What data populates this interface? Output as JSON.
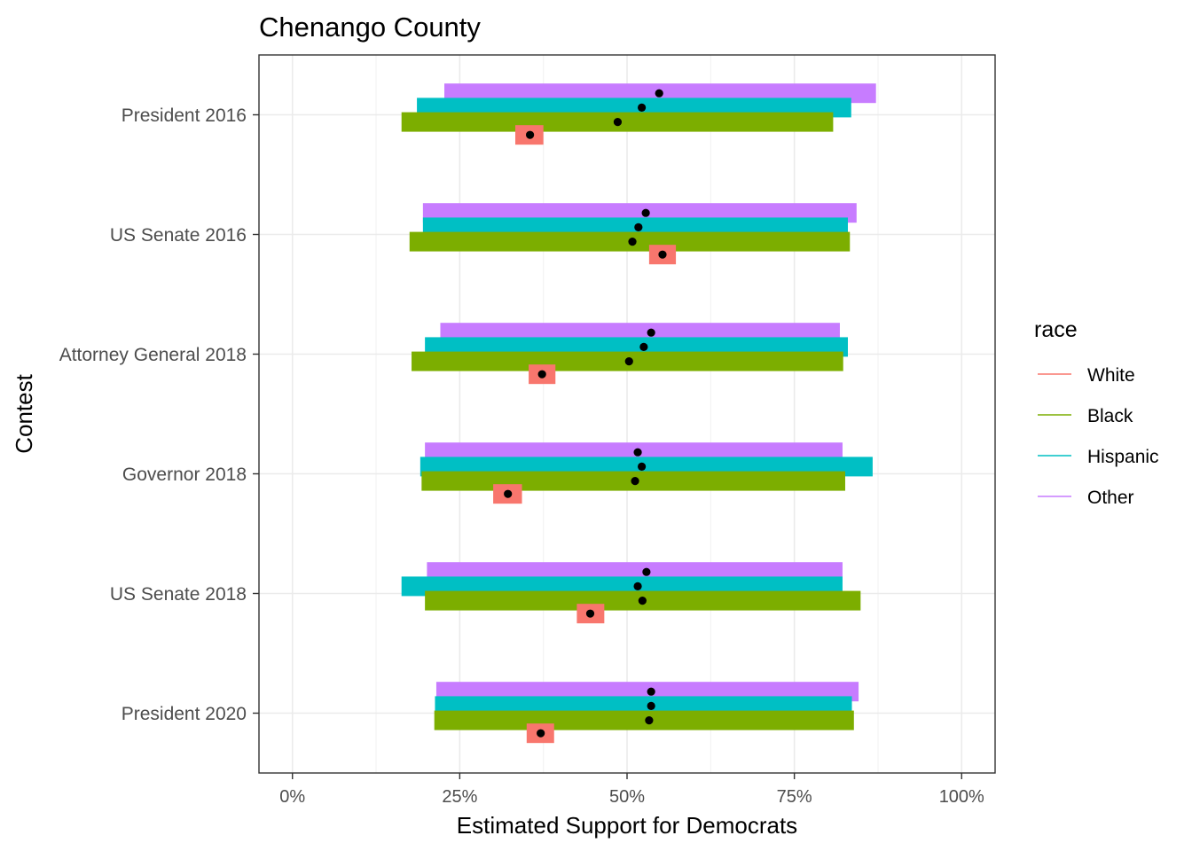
{
  "chart_data": {
    "type": "bar",
    "title": "Chenango County",
    "xlabel": "Estimated Support for Democrats",
    "ylabel": "Contest",
    "xlim": [
      -0.05,
      1.05
    ],
    "x_ticks": [
      0,
      0.25,
      0.5,
      0.75,
      1.0
    ],
    "x_tick_labels": [
      "0%",
      "25%",
      "50%",
      "75%",
      "100%"
    ],
    "grid": true,
    "legend": {
      "title": "race",
      "position": "right"
    },
    "categories": [
      "President 2016",
      "US Senate 2016",
      "Attorney General 2018",
      "Governor 2018",
      "US Senate 2018",
      "President 2020"
    ],
    "series": [
      {
        "name": "White",
        "color": "#F8766D",
        "low": [
          0.333,
          0.533,
          0.353,
          0.3,
          0.425,
          0.35
        ],
        "high": [
          0.375,
          0.573,
          0.393,
          0.343,
          0.466,
          0.391
        ],
        "point": [
          0.355,
          0.553,
          0.373,
          0.322,
          0.445,
          0.371
        ]
      },
      {
        "name": "Black",
        "color": "#7CAE00",
        "low": [
          0.163,
          0.175,
          0.178,
          0.193,
          0.198,
          0.212
        ],
        "high": [
          0.808,
          0.833,
          0.823,
          0.826,
          0.849,
          0.839
        ],
        "point": [
          0.486,
          0.508,
          0.503,
          0.512,
          0.523,
          0.533
        ]
      },
      {
        "name": "Hispanic",
        "color": "#00BFC4",
        "low": [
          0.186,
          0.195,
          0.198,
          0.191,
          0.163,
          0.213
        ],
        "high": [
          0.835,
          0.83,
          0.83,
          0.867,
          0.822,
          0.836
        ],
        "point": [
          0.522,
          0.517,
          0.525,
          0.522,
          0.516,
          0.536
        ]
      },
      {
        "name": "Other",
        "color": "#C77CFF",
        "low": [
          0.227,
          0.195,
          0.221,
          0.198,
          0.201,
          0.215
        ],
        "high": [
          0.872,
          0.843,
          0.818,
          0.822,
          0.822,
          0.846
        ],
        "point": [
          0.548,
          0.528,
          0.536,
          0.516,
          0.529,
          0.536
        ]
      }
    ]
  }
}
